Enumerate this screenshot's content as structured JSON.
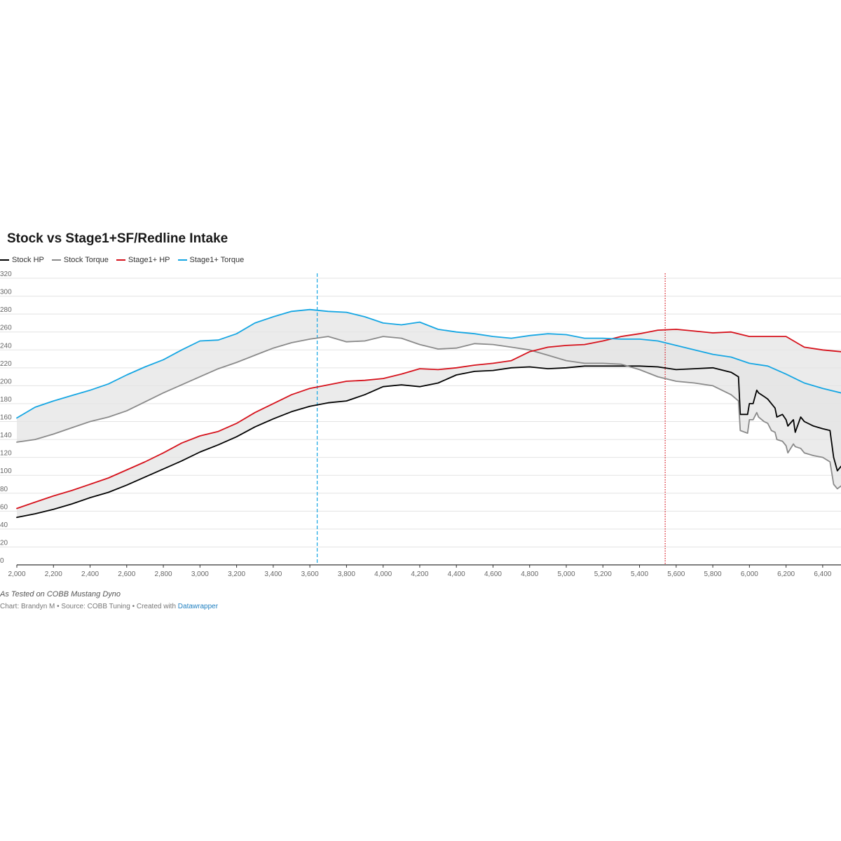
{
  "colors": {
    "stock_hp": "#000000",
    "stock_torque": "#8a8a8a",
    "stage1_hp": "#d6111b",
    "stage1_torque": "#15a6e3",
    "band_fill": "#e4e4e4",
    "grid": "#e3e3e3",
    "axis": "#333333",
    "marker_blue": "#15a6e3",
    "marker_red": "#d6111b"
  },
  "header": {
    "title": "Stock vs Stage1+SF/Redline Intake"
  },
  "legend": [
    {
      "label": "Stock HP",
      "color": "#000000"
    },
    {
      "label": "Stock Torque",
      "color": "#8a8a8a"
    },
    {
      "label": "Stage1+ HP",
      "color": "#d6111b"
    },
    {
      "label": "Stage1+ Torque",
      "color": "#15a6e3"
    }
  ],
  "footer": {
    "note": "As Tested on COBB Mustang Dyno",
    "byline": "Chart: Brandyn M • Source: COBB Tuning • Created with ",
    "link": "Datawrapper"
  },
  "chart_data": {
    "type": "line",
    "title": "Stock vs Stage1+SF/Redline Intake",
    "xlabel": "",
    "ylabel": "",
    "xlim": [
      2000,
      6500
    ],
    "ylim": [
      0,
      320
    ],
    "x_ticks": [
      2000,
      2200,
      2400,
      2600,
      2800,
      3000,
      3200,
      3400,
      3600,
      3800,
      4000,
      4200,
      4400,
      4600,
      4800,
      5000,
      5200,
      5400,
      5600,
      5800,
      6000,
      6200,
      6400
    ],
    "x_tick_labels": [
      "2,000",
      "2,200",
      "2,400",
      "2,600",
      "2,800",
      "3,000",
      "3,200",
      "3,400",
      "3,600",
      "3,800",
      "4,000",
      "4,200",
      "4,400",
      "4,600",
      "4,800",
      "5,000",
      "5,200",
      "5,400",
      "5,600",
      "5,800",
      "6,000",
      "6,200",
      "6,400"
    ],
    "y_ticks": [
      0,
      20,
      40,
      60,
      80,
      100,
      120,
      140,
      160,
      180,
      200,
      220,
      240,
      260,
      280,
      300,
      320
    ],
    "y_tick_labels": [
      "0",
      "20",
      "40",
      "60",
      "80",
      "100",
      "120",
      "140",
      "160",
      "180",
      "200",
      "220",
      "240",
      "260",
      "280",
      "300",
      "320"
    ],
    "grid": true,
    "legend_position": "top-left",
    "vertical_markers": [
      {
        "x": 3640,
        "style": "dashed",
        "color": "#15a6e3"
      },
      {
        "x": 5540,
        "style": "dotted",
        "color": "#d6111b"
      }
    ],
    "bands": [
      {
        "lower": "Stock HP",
        "upper": "Stage1+ HP"
      },
      {
        "lower": "Stock Torque",
        "upper": "Stage1+ Torque"
      }
    ],
    "series": [
      {
        "name": "Stock HP",
        "x": [
          2000,
          2100,
          2200,
          2300,
          2400,
          2500,
          2600,
          2700,
          2800,
          2900,
          3000,
          3100,
          3200,
          3300,
          3400,
          3500,
          3600,
          3700,
          3800,
          3900,
          4000,
          4100,
          4200,
          4300,
          4400,
          4500,
          4600,
          4700,
          4800,
          4900,
          5000,
          5100,
          5200,
          5300,
          5400,
          5500,
          5600,
          5700,
          5800,
          5900,
          5940,
          5950,
          5990,
          6000,
          6020,
          6040,
          6050,
          6080,
          6100,
          6120,
          6140,
          6150,
          6180,
          6200,
          6210,
          6240,
          6250,
          6280,
          6300,
          6350,
          6400,
          6440,
          6460,
          6480,
          6500
        ],
        "values": [
          53,
          57,
          62,
          68,
          75,
          81,
          89,
          98,
          107,
          116,
          126,
          134,
          143,
          154,
          163,
          171,
          177,
          181,
          183,
          190,
          199,
          201,
          199,
          203,
          212,
          216,
          217,
          220,
          221,
          219,
          220,
          222,
          222,
          222,
          222,
          221,
          218,
          219,
          220,
          215,
          210,
          168,
          168,
          180,
          180,
          195,
          192,
          188,
          185,
          180,
          175,
          165,
          168,
          162,
          155,
          162,
          148,
          165,
          160,
          155,
          152,
          150,
          120,
          105,
          110
        ]
      },
      {
        "name": "Stock Torque",
        "x": [
          2000,
          2100,
          2200,
          2300,
          2400,
          2500,
          2600,
          2700,
          2800,
          2900,
          3000,
          3100,
          3200,
          3300,
          3400,
          3500,
          3600,
          3700,
          3800,
          3900,
          4000,
          4100,
          4200,
          4300,
          4400,
          4500,
          4600,
          4700,
          4800,
          4900,
          5000,
          5100,
          5200,
          5300,
          5400,
          5500,
          5600,
          5700,
          5800,
          5900,
          5940,
          5950,
          5990,
          6000,
          6020,
          6040,
          6050,
          6080,
          6100,
          6120,
          6140,
          6150,
          6180,
          6200,
          6210,
          6240,
          6250,
          6280,
          6300,
          6350,
          6400,
          6440,
          6460,
          6480,
          6500
        ],
        "values": [
          137,
          140,
          146,
          153,
          160,
          165,
          172,
          182,
          192,
          201,
          210,
          219,
          226,
          234,
          242,
          248,
          252,
          255,
          249,
          250,
          255,
          253,
          246,
          241,
          242,
          247,
          246,
          243,
          240,
          234,
          228,
          225,
          225,
          224,
          218,
          210,
          205,
          203,
          200,
          190,
          183,
          150,
          147,
          162,
          162,
          170,
          165,
          160,
          158,
          150,
          148,
          140,
          138,
          133,
          125,
          135,
          132,
          130,
          125,
          122,
          120,
          115,
          90,
          85,
          88
        ]
      },
      {
        "name": "Stage1+ HP",
        "x": [
          2000,
          2100,
          2200,
          2300,
          2400,
          2500,
          2600,
          2700,
          2800,
          2900,
          3000,
          3100,
          3200,
          3300,
          3400,
          3500,
          3600,
          3700,
          3800,
          3900,
          4000,
          4100,
          4200,
          4300,
          4400,
          4500,
          4600,
          4700,
          4800,
          4900,
          5000,
          5100,
          5200,
          5300,
          5400,
          5500,
          5600,
          5700,
          5800,
          5900,
          6000,
          6100,
          6200,
          6300,
          6400,
          6500
        ],
        "values": [
          63,
          70,
          77,
          83,
          90,
          97,
          106,
          115,
          125,
          136,
          144,
          149,
          158,
          170,
          180,
          190,
          197,
          201,
          205,
          206,
          208,
          213,
          219,
          218,
          220,
          223,
          225,
          228,
          238,
          243,
          245,
          246,
          250,
          255,
          258,
          262,
          263,
          261,
          259,
          260,
          255,
          255,
          255,
          243,
          240,
          238
        ]
      },
      {
        "name": "Stage1+ Torque",
        "x": [
          2000,
          2100,
          2200,
          2300,
          2400,
          2500,
          2600,
          2700,
          2800,
          2900,
          3000,
          3100,
          3200,
          3300,
          3400,
          3500,
          3600,
          3700,
          3800,
          3900,
          4000,
          4100,
          4200,
          4300,
          4400,
          4500,
          4600,
          4700,
          4800,
          4900,
          5000,
          5100,
          5200,
          5300,
          5400,
          5500,
          5600,
          5700,
          5800,
          5900,
          6000,
          6100,
          6200,
          6300,
          6400,
          6500
        ],
        "values": [
          164,
          176,
          183,
          189,
          195,
          202,
          212,
          221,
          229,
          240,
          250,
          251,
          258,
          270,
          277,
          283,
          285,
          283,
          282,
          277,
          270,
          268,
          271,
          263,
          260,
          258,
          255,
          253,
          256,
          258,
          257,
          253,
          253,
          252,
          252,
          250,
          245,
          240,
          235,
          232,
          225,
          222,
          213,
          203,
          197,
          192
        ]
      }
    ]
  }
}
